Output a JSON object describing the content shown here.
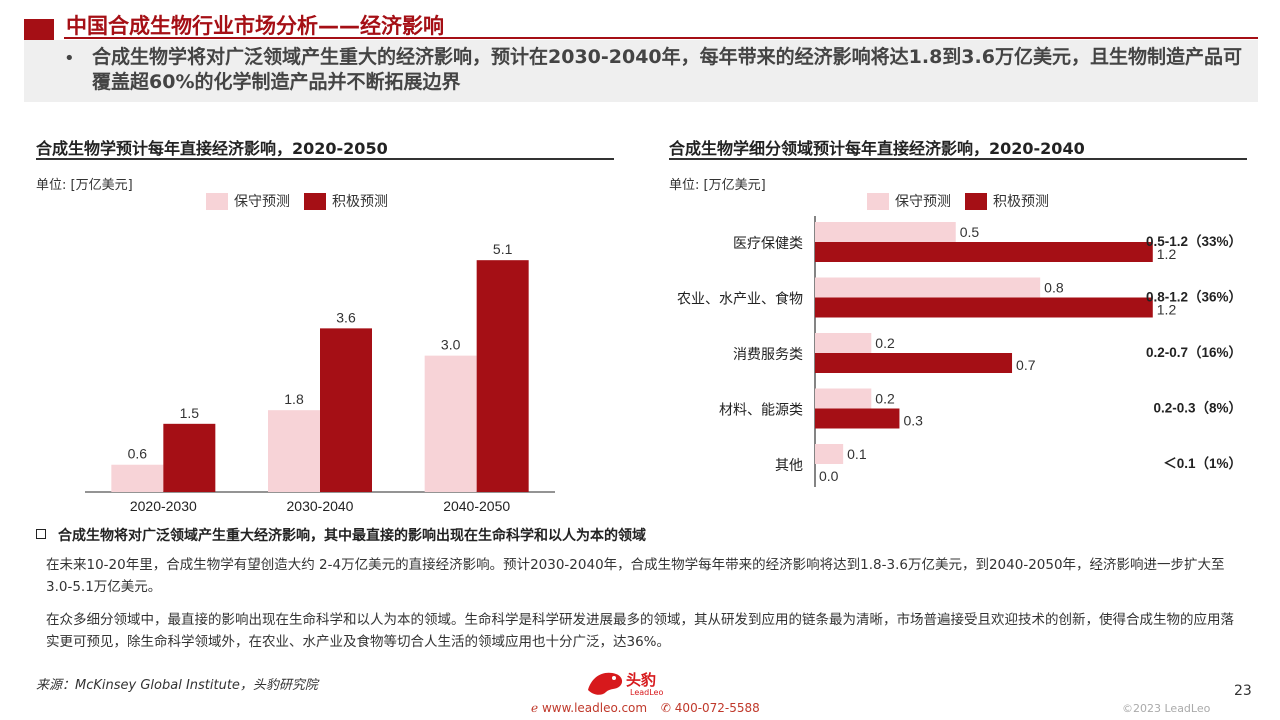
{
  "header": {
    "title": "中国合成生物行业市场分析——经济影响",
    "summary": "合成生物学将对广泛领域产生重大的经济影响，预计在2030-2040年，每年带来的经济影响将达1.8到3.6万亿美元，且生物制造产品可覆盖超60%的化学制造产品并不断拓展边界"
  },
  "colors": {
    "accent": "#a50f15",
    "conservative": "#f7d3d7",
    "aggressive": "#a50f15"
  },
  "left_section": {
    "title": "合成生物学预计每年直接经济影响，2020-2050",
    "unit": "单位: [万亿美元]"
  },
  "right_section": {
    "title": "合成生物学细分领域预计每年直接经济影响，2020-2040",
    "unit": "单位: [万亿美元]"
  },
  "legend": {
    "conservative": "保守预测",
    "aggressive": "积极预测"
  },
  "chart_data": [
    {
      "type": "bar",
      "categories": [
        "2020-2030",
        "2030-2040",
        "2040-2050"
      ],
      "series": [
        {
          "name": "保守预测",
          "values": [
            0.6,
            1.8,
            3.0
          ],
          "labels": [
            "0.6",
            "1.8",
            "3.0"
          ]
        },
        {
          "name": "积极预测",
          "values": [
            1.5,
            3.6,
            5.1
          ],
          "labels": [
            "1.5",
            "3.6",
            "5.1"
          ]
        }
      ],
      "ylim": [
        0,
        5.5
      ]
    },
    {
      "type": "bar",
      "orientation": "horizontal",
      "categories": [
        "医疗保健类",
        "农业、水产业、食物",
        "消费服务类",
        "材料、能源类",
        "其他"
      ],
      "series": [
        {
          "name": "保守预测",
          "values": [
            0.5,
            0.8,
            0.2,
            0.2,
            0.1
          ],
          "labels": [
            "0.5",
            "0.8",
            "0.2",
            "0.2",
            "0.1"
          ]
        },
        {
          "name": "积极预测",
          "values": [
            1.2,
            1.2,
            0.7,
            0.3,
            0.0
          ],
          "labels": [
            "1.2",
            "1.2",
            "0.7",
            "0.3",
            "0.0"
          ]
        }
      ],
      "annotations": [
        "0.5-1.2（33%）",
        "0.8-1.2（36%）",
        "0.2-0.7（16%）",
        "0.2-0.3（8%）",
        "＜0.1（1%）"
      ],
      "xlim": [
        0,
        1.35
      ]
    }
  ],
  "body": {
    "heading": "合成生物将对广泛领域产生重大经济影响，其中最直接的影响出现在生命科学和以人为本的领域",
    "para1": "在未来10-20年里，合成生物学有望创造大约 2-4万亿美元的直接经济影响。预计2030-2040年，合成生物学每年带来的经济影响将达到1.8-3.6万亿美元，到2040-2050年，经济影响进一步扩大至3.0-5.1万亿美元。",
    "para2": "在众多细分领域中，最直接的影响出现在生命科学和以人为本的领域。生命科学是科学研发进展最多的领域，其从研发到应用的链条最为清晰，市场普遍接受且欢迎技术的创新，使得合成生物的应用落实更可预见，除生命科学领域外，在农业、水产业及食物等切合人生活的领域应用也十分广泛，达36%。"
  },
  "footer": {
    "source": "来源：McKinsey Global Institute，头豹研究院",
    "logo_text": "头豹",
    "logo_sub": "LeadLeo",
    "website": "www.leadleo.com",
    "phone": "400-072-5588",
    "page_number": "23",
    "copyright": "©2023 LeadLeo"
  }
}
